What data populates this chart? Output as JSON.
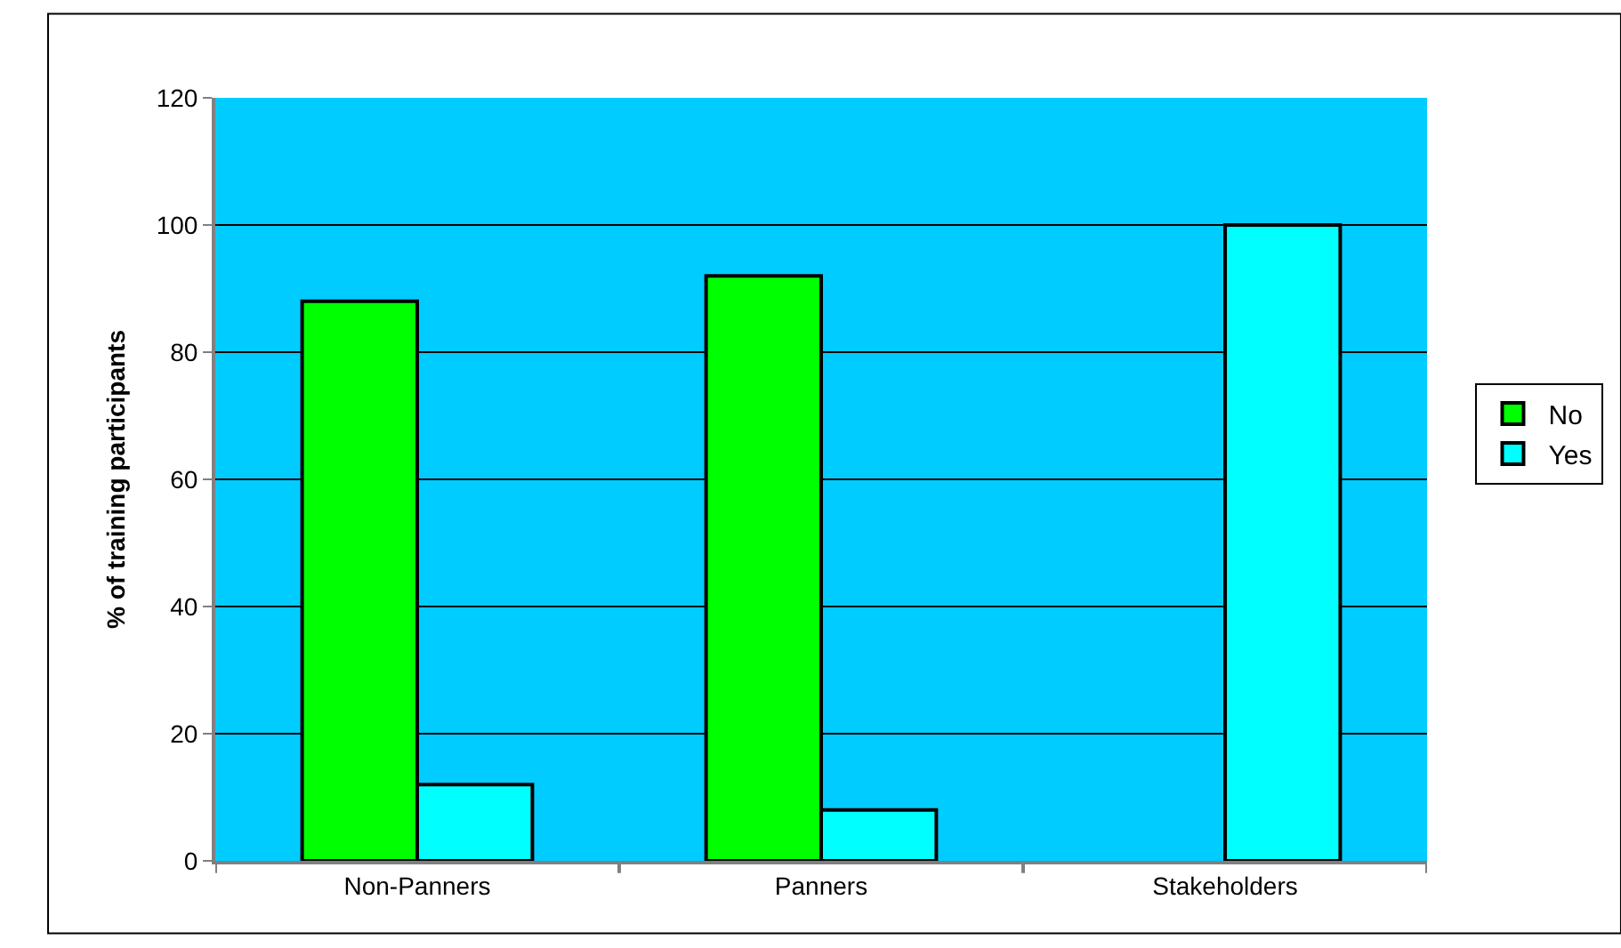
{
  "chart_data": {
    "type": "bar",
    "ylabel": "% of training participants",
    "categories": [
      "Non-Panners",
      "Panners",
      "Stakeholders"
    ],
    "series": [
      {
        "name": "No",
        "color": "#00ff00",
        "values": [
          88,
          92,
          null
        ]
      },
      {
        "name": "Yes",
        "color": "#00ffff",
        "values": [
          12,
          8,
          100
        ]
      }
    ],
    "ylim": [
      0,
      120
    ],
    "yticks": [
      0,
      20,
      40,
      60,
      80,
      100,
      120
    ],
    "grid": "y",
    "legend": "right"
  }
}
